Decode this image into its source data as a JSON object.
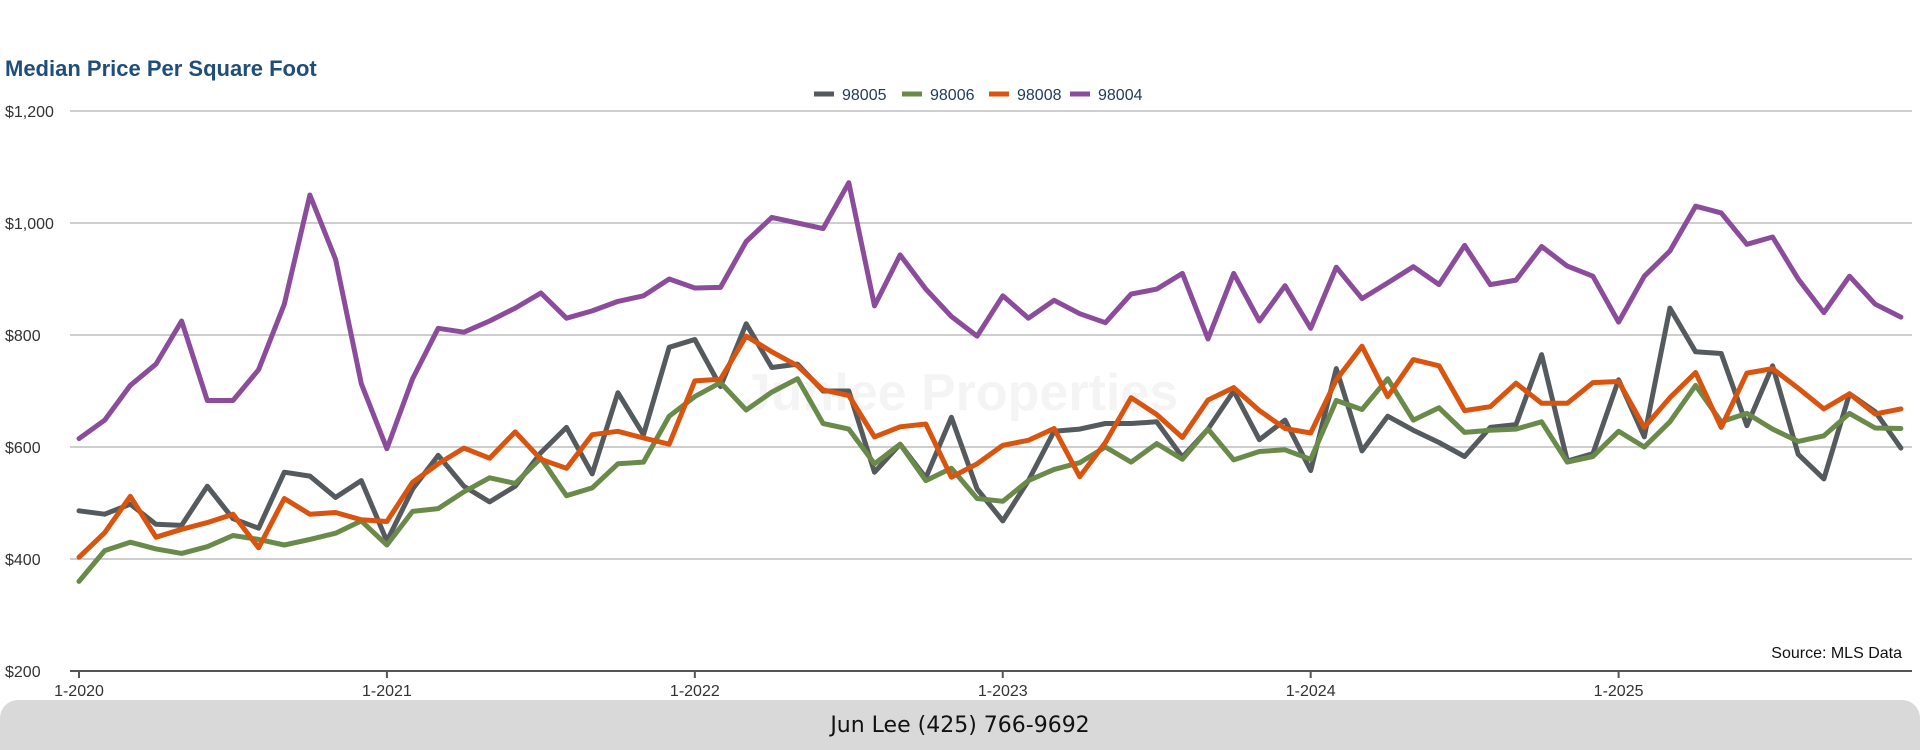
{
  "chart_data": {
    "type": "line",
    "title": "Median Price Per Square Foot",
    "xlabel": "",
    "ylabel": "",
    "ylim": [
      200,
      1200
    ],
    "yticks": [
      "$1,200",
      "$1,000",
      "$800",
      "$600",
      "$400",
      "$200"
    ],
    "ytick_values": [
      1200,
      1000,
      800,
      600,
      400,
      200
    ],
    "xticks": [
      "1-2020",
      "1-2021",
      "1-2022",
      "1-2023",
      "1-2024",
      "1-2025"
    ],
    "xtick_index": [
      0,
      12,
      24,
      36,
      48,
      60
    ],
    "legend_position": "top-center",
    "grid": true,
    "x_start": "2020-01",
    "x_frequency": "monthly",
    "series": [
      {
        "name": "98005",
        "color": "#545a5e",
        "values": [
          486,
          480,
          498,
          462,
          460,
          530,
          472,
          455,
          555,
          548,
          510,
          540,
          432,
          525,
          585,
          530,
          502,
          530,
          590,
          635,
          552,
          697,
          622,
          778,
          792,
          708,
          820,
          742,
          748,
          700,
          700,
          555,
          605,
          545,
          653,
          525,
          468,
          540,
          628,
          632,
          642,
          642,
          645,
          582,
          632,
          700,
          613,
          648,
          558,
          740,
          593,
          655,
          630,
          608,
          583,
          635,
          640,
          765,
          575,
          588,
          720,
          618,
          848,
          770,
          767,
          638,
          745,
          587,
          543,
          695,
          663,
          598
        ]
      },
      {
        "name": "98006",
        "color": "#6a8a49",
        "values": [
          360,
          415,
          430,
          418,
          410,
          422,
          442,
          435,
          425,
          435,
          446,
          468,
          425,
          485,
          490,
          520,
          545,
          535,
          580,
          513,
          527,
          570,
          573,
          655,
          690,
          715,
          666,
          698,
          722,
          642,
          632,
          570,
          605,
          540,
          562,
          508,
          503,
          540,
          560,
          572,
          600,
          573,
          606,
          578,
          632,
          577,
          592,
          595,
          578,
          683,
          667,
          722,
          648,
          670,
          626,
          630,
          632,
          645,
          573,
          583,
          628,
          600,
          645,
          710,
          645,
          660,
          632,
          610,
          620,
          660,
          634,
          633
        ]
      },
      {
        "name": "98008",
        "color": "#d9540e",
        "values": [
          403,
          447,
          512,
          439,
          453,
          465,
          480,
          420,
          508,
          480,
          483,
          470,
          467,
          537,
          570,
          598,
          580,
          627,
          578,
          562,
          622,
          628,
          616,
          605,
          718,
          721,
          798,
          770,
          745,
          702,
          692,
          618,
          636,
          641,
          546,
          570,
          603,
          612,
          633,
          547,
          608,
          688,
          658,
          617,
          684,
          706,
          665,
          633,
          625,
          720,
          780,
          690,
          756,
          745,
          665,
          672,
          714,
          678,
          678,
          715,
          717,
          635,
          688,
          733,
          635,
          732,
          740,
          705,
          668,
          695,
          659,
          668
        ]
      },
      {
        "name": "98004",
        "color": "#8b4c9c",
        "values": [
          615,
          648,
          710,
          748,
          825,
          683,
          683,
          738,
          855,
          1050,
          935,
          713,
          597,
          722,
          812,
          805,
          825,
          848,
          875,
          830,
          843,
          860,
          870,
          900,
          884,
          885,
          967,
          1010,
          1000,
          990,
          1072,
          852,
          943,
          882,
          833,
          798,
          870,
          830,
          862,
          838,
          822,
          873,
          882,
          910,
          793,
          910,
          825,
          888,
          812,
          921,
          865,
          893,
          922,
          890,
          960,
          890,
          898,
          958,
          923,
          905,
          823,
          905,
          950,
          1030,
          1018,
          962,
          975,
          900,
          840,
          905,
          855,
          832
        ]
      }
    ],
    "source_label": "Source: MLS Data",
    "watermark": "Junlee Properties"
  },
  "footer": {
    "contact": "Jun Lee (425) 766-9692"
  }
}
